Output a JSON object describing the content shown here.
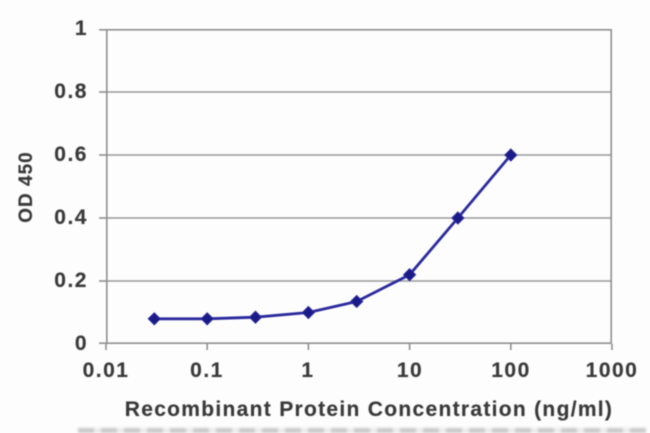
{
  "chart_data": {
    "type": "line",
    "title": "",
    "xlabel": "Recombinant Protein Concentration (ng/ml)",
    "ylabel": "OD 450",
    "x_scale": "log",
    "xlim": [
      0.01,
      1000
    ],
    "ylim": [
      0,
      1
    ],
    "x_ticks": [
      "0.01",
      "0.1",
      "1",
      "10",
      "100",
      "1000"
    ],
    "x_tick_values": [
      0.01,
      0.1,
      1,
      10,
      100,
      1000
    ],
    "y_ticks": [
      "1",
      "0.8",
      "0.6",
      "0.4",
      "0.2",
      "0"
    ],
    "y_tick_values": [
      1,
      0.8,
      0.6,
      0.4,
      0.2,
      0
    ],
    "grid": true,
    "legend": false,
    "series": [
      {
        "name": "OD450",
        "marker": "diamond",
        "x": [
          0.03,
          0.1,
          0.3,
          1,
          3,
          10,
          30,
          100
        ],
        "y": [
          0.08,
          0.08,
          0.085,
          0.1,
          0.135,
          0.22,
          0.4,
          0.6
        ]
      }
    ]
  },
  "colors": {
    "line": "#2b2b9e",
    "marker": "#1b1b88",
    "grid": "#989898",
    "axis": "#8f8f8f",
    "text": "#3a3a3a",
    "background": "#fdfdfd"
  }
}
